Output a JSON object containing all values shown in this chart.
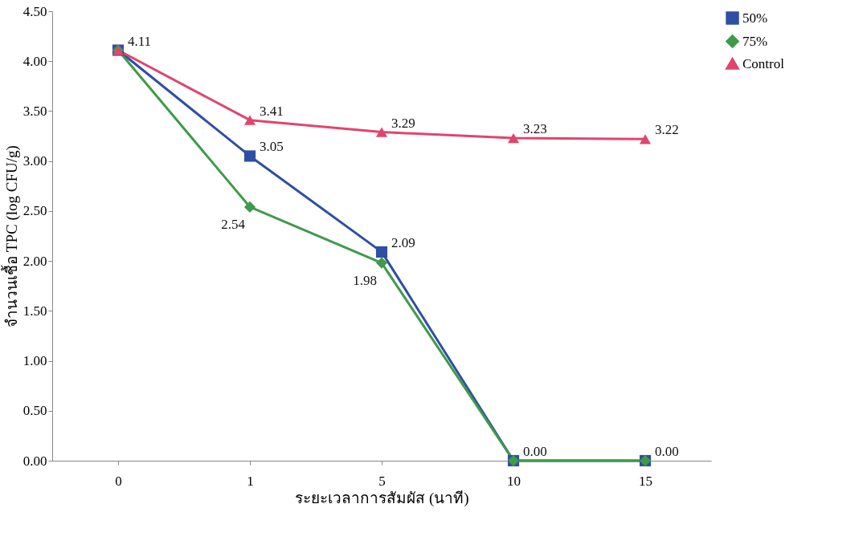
{
  "chart_data": {
    "type": "line",
    "xlabel": "ระยะเวลาการสัมผัส (นาที)",
    "ylabel": "จำนวนเชื้อ TPC (log CFU/g)",
    "categories": [
      "0",
      "1",
      "5",
      "10",
      "15"
    ],
    "series": [
      {
        "name": "50%",
        "color": "#2e4fa3",
        "marker": "square",
        "values": [
          4.11,
          3.05,
          2.09,
          0,
          0
        ],
        "value_labels": [
          "4.11",
          "3.05",
          "2.09",
          "0.00",
          "0.00"
        ]
      },
      {
        "name": "75%",
        "color": "#3f9a4a",
        "marker": "diamond",
        "values": [
          4.11,
          2.54,
          1.98,
          0,
          0
        ],
        "value_labels": [
          null,
          "2.54",
          "1.98",
          null,
          null
        ]
      },
      {
        "name": "Control",
        "color": "#e0456e",
        "marker": "triangle",
        "values": [
          4.11,
          3.41,
          3.29,
          3.23,
          3.22
        ],
        "value_labels": [
          null,
          "3.41",
          "3.29",
          "3.23",
          "3.22"
        ]
      }
    ],
    "ylim": [
      0,
      4.5
    ],
    "yticks": [
      {
        "value": 0,
        "label": "0.00"
      },
      {
        "value": 0.5,
        "label": "0.50"
      },
      {
        "value": 1,
        "label": "1.00"
      },
      {
        "value": 1.5,
        "label": "1.50"
      },
      {
        "value": 2,
        "label": "2.00"
      },
      {
        "value": 2.5,
        "label": "2.50"
      },
      {
        "value": 3,
        "label": "3.00"
      },
      {
        "value": 3.5,
        "label": "3.50"
      },
      {
        "value": 4,
        "label": "4.00"
      },
      {
        "value": 4.5,
        "label": "4.50"
      }
    ],
    "grid": false,
    "legend": "right"
  }
}
